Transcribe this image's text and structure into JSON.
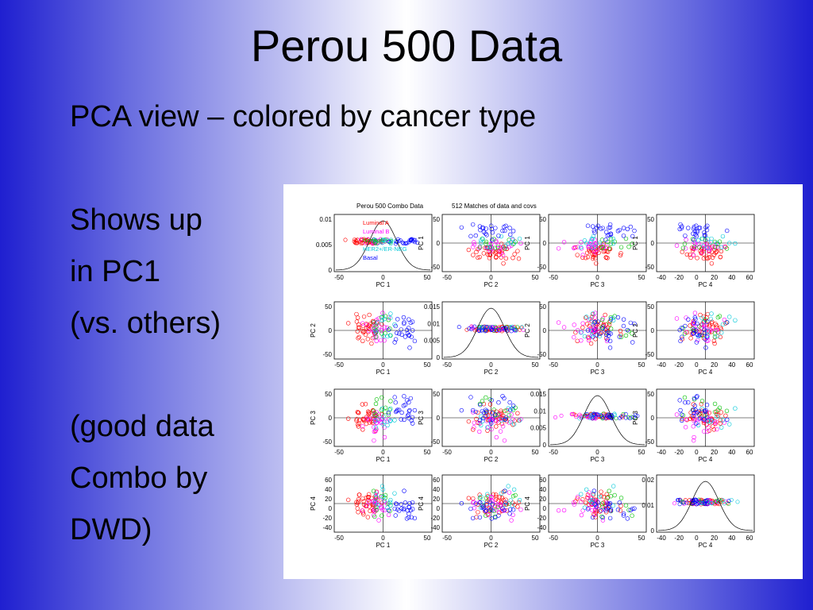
{
  "slide": {
    "title": "Perou 500 Data",
    "subtitle": "PCA view – colored by cancer type",
    "bullets": [
      "Shows up",
      "in PC1",
      "(vs. others)",
      "",
      "(good data",
      "Combo by",
      "DWD)"
    ]
  },
  "figure": {
    "header_left": "Perou 500 Combo Data",
    "header_right": "512 Matches of data and covs",
    "legend": [
      {
        "label": "Luminal A",
        "color": "#ff0000"
      },
      {
        "label": "Luminal B",
        "color": "#ff00ff"
      },
      {
        "label": "Normal",
        "color": "#00c000"
      },
      {
        "label": "HER2+/ER-NEG",
        "color": "#00c8d8"
      },
      {
        "label": "Basal",
        "color": "#0000ff"
      }
    ],
    "pc_labels": [
      "PC 1",
      "PC 2",
      "PC 3",
      "PC 4"
    ],
    "x_ticks": {
      "PC 1": [
        "-50",
        "0",
        "50"
      ],
      "PC 2": [
        "-50",
        "0",
        "50"
      ],
      "PC 3": [
        "-50",
        "0",
        "50"
      ],
      "PC 4": [
        "-40",
        "-20",
        "0",
        "20",
        "40",
        "60"
      ]
    },
    "y_ticks": {
      "PC 1": [
        "50",
        "0",
        "-50"
      ],
      "PC 2": [
        "50",
        "0",
        "-50"
      ],
      "PC 3": [
        "50",
        "0",
        "-50"
      ],
      "PC 4": [
        "60",
        "40",
        "20",
        "0",
        "-20",
        "-40"
      ]
    },
    "density_ticks": [
      [
        "0.01",
        "0.005",
        "0"
      ],
      [
        "0.015",
        "0.01",
        "0.005",
        "0"
      ],
      [
        "0.015",
        "0.01",
        "0.005",
        "0"
      ],
      [
        "0.02",
        "0.01",
        "0"
      ]
    ]
  }
}
